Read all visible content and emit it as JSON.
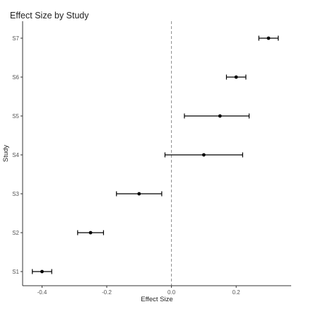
{
  "chart_data": {
    "type": "scatter",
    "subtype": "forest-plot",
    "title": "Effect Size by Study",
    "xlabel": "Effect Size",
    "ylabel": "Study",
    "xlim": [
      -0.46,
      0.37
    ],
    "x_ticks": [
      -0.4,
      -0.2,
      0.0,
      0.2
    ],
    "x_tick_labels": [
      "-0.4",
      "-0.2",
      "0.0",
      "0.2"
    ],
    "reference_line": 0,
    "grid": false,
    "legend": "none",
    "categories": [
      "S1",
      "S2",
      "S3",
      "S4",
      "S5",
      "S6",
      "S7"
    ],
    "series": [
      {
        "estimate": [
          -0.4,
          -0.25,
          -0.1,
          0.1,
          0.15,
          0.2,
          0.3
        ],
        "lower": [
          -0.43,
          -0.29,
          -0.17,
          -0.02,
          0.04,
          0.17,
          0.27
        ],
        "upper": [
          -0.37,
          -0.21,
          -0.03,
          0.22,
          0.24,
          0.23,
          0.33
        ]
      }
    ],
    "colors": {
      "point": "#000000",
      "reference_line": "#8a8a8a",
      "axis": "#333333"
    }
  }
}
